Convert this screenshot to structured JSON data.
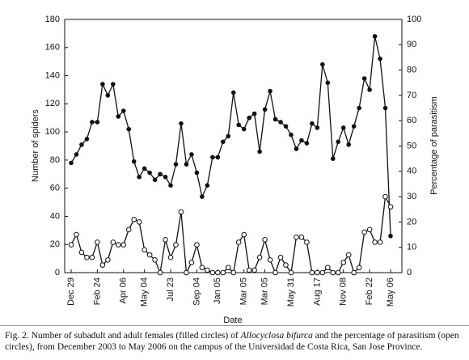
{
  "chart_data": {
    "type": "line",
    "y_label": "Number of spiders",
    "y2_label": "Percentage of parasitism",
    "x_label": "Date",
    "categories": [
      "Dec 29",
      null,
      null,
      null,
      null,
      "Feb 24",
      null,
      null,
      null,
      null,
      "Apr 06",
      null,
      null,
      null,
      "May 04",
      null,
      null,
      null,
      null,
      "Jul 23",
      null,
      null,
      null,
      null,
      "Sep 04",
      null,
      null,
      null,
      "Jan 05",
      null,
      null,
      null,
      null,
      "Mar 05",
      null,
      null,
      null,
      "Mar 05",
      null,
      null,
      null,
      null,
      "May 31",
      null,
      null,
      null,
      null,
      "Aug 17",
      null,
      null,
      null,
      null,
      "Nov 08",
      null,
      null,
      null,
      null,
      "Feb 22",
      null,
      null,
      null,
      "May 06"
    ],
    "series": [
      {
        "color": "#111111",
        "marker": "filled",
        "values": [
          78,
          84,
          91,
          95,
          107,
          107,
          134,
          126,
          134,
          111,
          115,
          102,
          79,
          68,
          74,
          71,
          66,
          70,
          68,
          62,
          77,
          106,
          77,
          84,
          71,
          54,
          62,
          82,
          82,
          93,
          97,
          128,
          105,
          102,
          110,
          113,
          86,
          116,
          129,
          109,
          107,
          104,
          98,
          88,
          94,
          92,
          106,
          103,
          148,
          135,
          81,
          93,
          103,
          91,
          104,
          117,
          138,
          130,
          168,
          152,
          117,
          26
        ]
      },
      {
        "color": "#111111",
        "marker": "open",
        "axis": "y2",
        "values": [
          11,
          15,
          8,
          6,
          6,
          12,
          3,
          5,
          12,
          11,
          11,
          17,
          21,
          20,
          9,
          7,
          5,
          0,
          13,
          6,
          11,
          24,
          0,
          4,
          11,
          2,
          1,
          0,
          0,
          0,
          2,
          0,
          12,
          15,
          1,
          1,
          6,
          13,
          5,
          0,
          6,
          3,
          0,
          14,
          14,
          12,
          0,
          0,
          0,
          2,
          0,
          0,
          4,
          7,
          0,
          2,
          16,
          17,
          12,
          12,
          30,
          26
        ]
      }
    ],
    "ylim": [
      0,
      180
    ],
    "yticks": [
      0,
      20,
      40,
      60,
      80,
      100,
      120,
      140,
      160,
      180
    ],
    "y2lim": [
      0,
      100
    ],
    "y2ticks": [
      0,
      10,
      20,
      30,
      40,
      50,
      60,
      70,
      80,
      90,
      100
    ],
    "caption": {
      "before": "Fig. 2. Number of subadult and adult females (filled circles) of ",
      "species": "Allocyclosa bifurca",
      "after": " and the percentage of parasitism (open circles), from December 2003 to May 2006 on the campus of the Universidad de Costa Rica, San Jose Province."
    }
  }
}
